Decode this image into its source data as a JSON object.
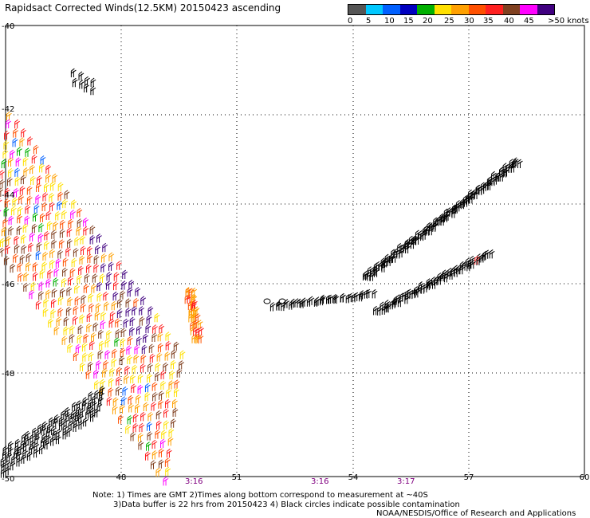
{
  "title": "Rapidsact Corrected Winds(12.5KM) 20150423 ascending",
  "colorbar": {
    "labels": [
      "0",
      "5",
      "10",
      "15",
      "20",
      "25",
      "30",
      "35",
      "40",
      "45",
      ">50 knots"
    ],
    "colors": [
      "#555555",
      "#00c8ff",
      "#0060ff",
      "#0000c0",
      "#00b000",
      "#ffe000",
      "#ffa000",
      "#ff5000",
      "#ff2020",
      "#804020",
      "#ff00ff",
      "#400080"
    ]
  },
  "map": {
    "lat_labels": [
      "-40",
      "-42",
      "-44",
      "-46",
      "-48",
      "-50"
    ],
    "lon_labels": [
      "48",
      "51",
      "54",
      "57",
      "60"
    ],
    "time_labels": [
      "3:16",
      "3:16",
      "3:17"
    ]
  },
  "footer": {
    "note1": "Note: 1) Times are GMT 2)Times along bottom correspond to measurement at ~40S",
    "note2": "3)Data buffer is 22 hrs from 20150423 4) Black circles indicate possible contamination",
    "credit": "NOAA/NESDIS/Office of Research and Applications"
  }
}
